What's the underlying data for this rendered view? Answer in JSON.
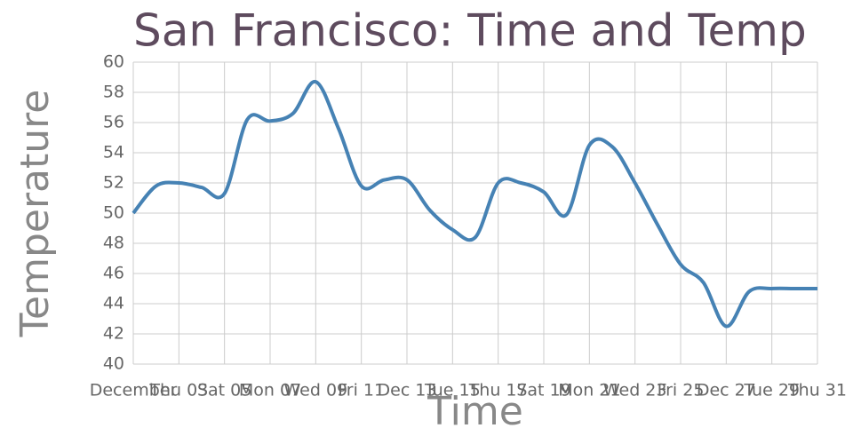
{
  "chart_data": {
    "type": "line",
    "title": "San Francisco: Time and Temp",
    "x_label": "Time",
    "y_label": "Temperature",
    "x": [
      1,
      2,
      3,
      4,
      5,
      6,
      7,
      8,
      9,
      10,
      11,
      12,
      13,
      14,
      15,
      16,
      17,
      18,
      19,
      20,
      21,
      22,
      23,
      24,
      25,
      26,
      27,
      28,
      29,
      30,
      31
    ],
    "series": [
      {
        "name": "Temperature",
        "color": "#4682b4",
        "values": [
          50,
          51.8,
          52,
          51.7,
          51.3,
          56.2,
          56.1,
          56.6,
          58.7,
          55.6,
          51.8,
          52.2,
          52.2,
          50.2,
          48.9,
          48.4,
          52,
          52,
          51.4,
          49.9,
          54.5,
          54.4,
          52,
          49.2,
          46.6,
          45.4,
          42.5,
          44.8,
          45,
          45,
          45
        ]
      }
    ],
    "xlim": [
      1,
      31
    ],
    "xticks": [
      {
        "value": 1,
        "label": "December"
      },
      {
        "value": 3,
        "label": "Thu 03"
      },
      {
        "value": 5,
        "label": "Sat 05"
      },
      {
        "value": 7,
        "label": "Mon 07"
      },
      {
        "value": 9,
        "label": "Wed 09"
      },
      {
        "value": 11,
        "label": "Fri 11"
      },
      {
        "value": 13,
        "label": "Dec 13"
      },
      {
        "value": 15,
        "label": "Tue 15"
      },
      {
        "value": 17,
        "label": "Thu 17"
      },
      {
        "value": 19,
        "label": "Sat 19"
      },
      {
        "value": 21,
        "label": "Mon 21"
      },
      {
        "value": 23,
        "label": "Wed 23"
      },
      {
        "value": 25,
        "label": "Fri 25"
      },
      {
        "value": 27,
        "label": "Dec 27"
      },
      {
        "value": 29,
        "label": "Tue 29"
      },
      {
        "value": 31,
        "label": "Thu 31"
      }
    ],
    "ylim": [
      40,
      60
    ],
    "yticks": [
      40,
      42,
      44,
      46,
      48,
      50,
      52,
      54,
      56,
      58,
      60
    ],
    "grid": true
  }
}
